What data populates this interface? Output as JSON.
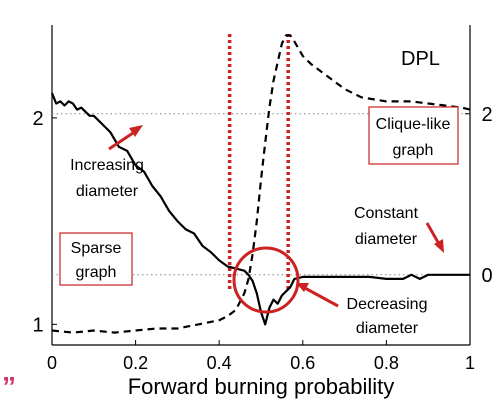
{
  "chart_data": {
    "type": "line",
    "title": "",
    "xlabel": "Forward burning probability",
    "ylabel_left": "",
    "ylabel_right": "",
    "xlim": [
      0,
      1
    ],
    "x_ticks": [
      "0",
      "0.2",
      "0.4",
      "0.6",
      "0.8",
      "1"
    ],
    "left_ticks": [
      "1",
      "2"
    ],
    "right_ticks": [
      "0",
      "2"
    ],
    "legend_label": "DPL",
    "series": [
      {
        "style": "solid",
        "x": [
          0.0,
          0.01,
          0.02,
          0.03,
          0.04,
          0.05,
          0.06,
          0.07,
          0.08,
          0.09,
          0.1,
          0.12,
          0.14,
          0.16,
          0.18,
          0.2,
          0.22,
          0.24,
          0.26,
          0.28,
          0.3,
          0.32,
          0.34,
          0.36,
          0.38,
          0.4,
          0.42,
          0.44,
          0.46,
          0.47,
          0.48,
          0.49,
          0.5,
          0.51,
          0.52,
          0.53,
          0.54,
          0.55,
          0.56,
          0.57,
          0.58,
          0.6,
          0.64,
          0.7,
          0.76,
          0.8,
          0.84,
          0.86,
          0.88,
          0.9,
          0.92,
          0.94,
          0.96,
          1.0
        ],
        "y": [
          2.12,
          2.07,
          2.08,
          2.06,
          2.08,
          2.07,
          2.04,
          2.05,
          2.03,
          2.01,
          2.01,
          1.97,
          1.93,
          1.86,
          1.84,
          1.77,
          1.74,
          1.67,
          1.62,
          1.55,
          1.5,
          1.46,
          1.44,
          1.38,
          1.35,
          1.31,
          1.28,
          1.27,
          1.26,
          1.24,
          1.21,
          1.15,
          1.06,
          1.0,
          1.08,
          1.12,
          1.1,
          1.14,
          1.16,
          1.18,
          1.22,
          1.23,
          1.23,
          1.23,
          1.23,
          1.22,
          1.22,
          1.24,
          1.22,
          1.24,
          1.24,
          1.24,
          1.24,
          1.24
        ]
      },
      {
        "style": "dashed",
        "x": [
          0.0,
          0.05,
          0.1,
          0.15,
          0.2,
          0.25,
          0.3,
          0.35,
          0.4,
          0.42,
          0.44,
          0.45,
          0.46,
          0.47,
          0.48,
          0.49,
          0.5,
          0.51,
          0.52,
          0.53,
          0.54,
          0.55,
          0.56,
          0.57,
          0.58,
          0.6,
          0.62,
          0.66,
          0.7,
          0.74,
          0.8,
          0.86,
          0.9,
          0.94,
          0.98,
          1.0
        ],
        "y": [
          0.97,
          0.96,
          0.97,
          0.96,
          0.97,
          0.98,
          0.98,
          1.0,
          1.02,
          1.04,
          1.07,
          1.11,
          1.15,
          1.22,
          1.34,
          1.5,
          1.7,
          1.88,
          2.05,
          2.18,
          2.27,
          2.36,
          2.4,
          2.4,
          2.37,
          2.3,
          2.26,
          2.2,
          2.14,
          2.1,
          2.08,
          2.08,
          2.07,
          2.06,
          2.05,
          2.04
        ]
      }
    ],
    "ylim": [
      0.9,
      2.45
    ],
    "right_tick_positions": {
      "0": 1.24,
      "2": 2.02
    },
    "vertical_markers": [
      0.425,
      0.565
    ],
    "marker_color": "#cc2222",
    "annotations": {
      "increasing": [
        "Increasing",
        "diameter"
      ],
      "sparse": [
        "Sparse",
        "graph"
      ],
      "clique": [
        "Clique-like",
        "graph"
      ],
      "constant": [
        "Constant",
        "diameter"
      ],
      "decreasing": [
        "Decreasing",
        "diameter"
      ]
    },
    "stray_mark": "”"
  }
}
